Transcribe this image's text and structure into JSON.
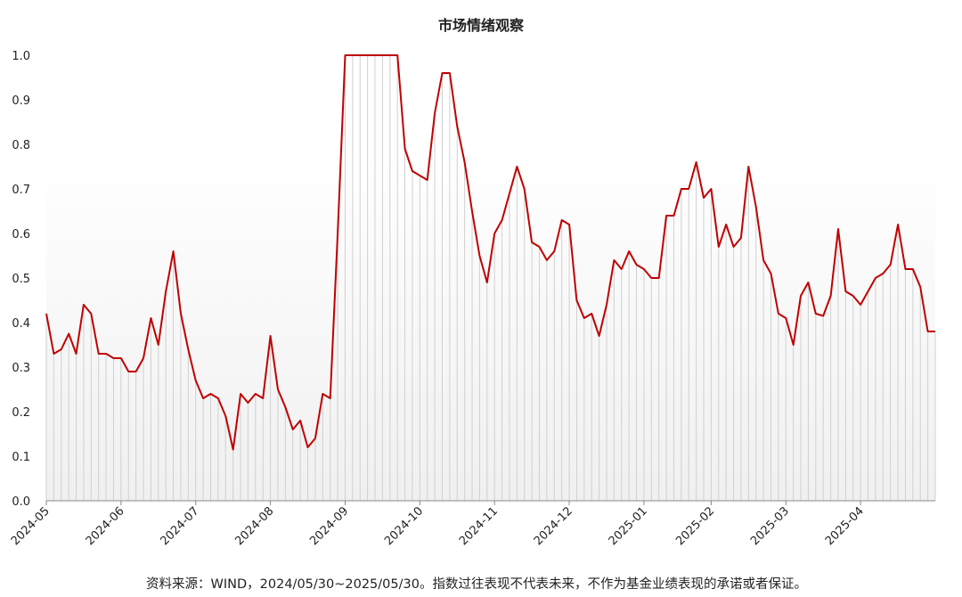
{
  "chart_data": {
    "type": "line",
    "title": "市场情绪观察",
    "note": "资料来源：WIND，2024/05/30~2025/05/30。指数过往表现不代表未来，不作为基金业绩表现的承诺或者保证。",
    "categories": [
      "2024-05",
      null,
      null,
      null,
      null,
      null,
      null,
      null,
      null,
      null,
      "2024-06",
      null,
      null,
      null,
      null,
      null,
      null,
      null,
      null,
      null,
      "2024-07",
      null,
      null,
      null,
      null,
      null,
      null,
      null,
      null,
      null,
      "2024-08",
      null,
      null,
      null,
      null,
      null,
      null,
      null,
      null,
      null,
      "2024-09",
      null,
      null,
      null,
      null,
      null,
      null,
      null,
      null,
      null,
      "2024-10",
      null,
      null,
      null,
      null,
      null,
      null,
      null,
      null,
      null,
      "2024-11",
      null,
      null,
      null,
      null,
      null,
      null,
      null,
      null,
      null,
      "2024-12",
      null,
      null,
      null,
      null,
      null,
      null,
      null,
      null,
      null,
      "2025-01",
      null,
      null,
      null,
      null,
      null,
      null,
      null,
      null,
      "2025-02",
      null,
      null,
      null,
      null,
      null,
      null,
      null,
      null,
      null,
      "2025-03",
      null,
      null,
      null,
      null,
      null,
      null,
      null,
      null,
      null,
      "2025-04",
      null,
      null,
      null,
      null,
      null,
      null,
      null,
      null,
      null,
      null
    ],
    "series": [
      {
        "color": "#c00000",
        "values": [
          0.42,
          0.33,
          0.34,
          0.375,
          0.33,
          0.44,
          0.42,
          0.33,
          0.33,
          0.32,
          0.32,
          0.29,
          0.29,
          0.32,
          0.41,
          0.35,
          0.47,
          0.56,
          0.42,
          0.34,
          0.27,
          0.23,
          0.24,
          0.23,
          0.19,
          0.115,
          0.24,
          0.22,
          0.24,
          0.23,
          0.37,
          0.25,
          0.21,
          0.16,
          0.18,
          0.12,
          0.14,
          0.24,
          0.23,
          0.6,
          1,
          1,
          1,
          1,
          1,
          1,
          1,
          1,
          0.79,
          0.74,
          0.73,
          0.72,
          0.87,
          0.96,
          0.96,
          0.84,
          0.76,
          0.65,
          0.55,
          0.49,
          0.6,
          0.63,
          0.69,
          0.75,
          0.7,
          0.58,
          0.57,
          0.54,
          0.56,
          0.63,
          0.62,
          0.45,
          0.41,
          0.42,
          0.37,
          0.44,
          0.54,
          0.52,
          0.56,
          0.53,
          0.52,
          0.5,
          0.5,
          0.64,
          0.64,
          0.7,
          0.7,
          0.76,
          0.68,
          0.7,
          0.57,
          0.62,
          0.57,
          0.59,
          0.75,
          0.66,
          0.54,
          0.51,
          0.42,
          0.41,
          0.35,
          0.46,
          0.49,
          0.42,
          0.415,
          0.46,
          0.61,
          0.47,
          0.46,
          0.44,
          0.47,
          0.5,
          0.51,
          0.53,
          0.62,
          0.52,
          0.52,
          0.48,
          0.38,
          0.38
        ]
      }
    ],
    "ylim": [
      0,
      1
    ],
    "yticks": [
      {
        "value": 0,
        "label": "0.0"
      },
      {
        "value": 0.1,
        "label": "0.1"
      },
      {
        "value": 0.2,
        "label": "0.2"
      },
      {
        "value": 0.3,
        "label": "0.3"
      },
      {
        "value": 0.4,
        "label": "0.4"
      },
      {
        "value": 0.5,
        "label": "0.5"
      },
      {
        "value": 0.6,
        "label": "0.6"
      },
      {
        "value": 0.7,
        "label": "0.7"
      },
      {
        "value": 0.8,
        "label": "0.8"
      },
      {
        "value": 0.9,
        "label": "0.9"
      },
      {
        "value": 1,
        "label": "1.0"
      }
    ],
    "drop_lines": true,
    "drop_line_color": "#d0d0d0"
  }
}
